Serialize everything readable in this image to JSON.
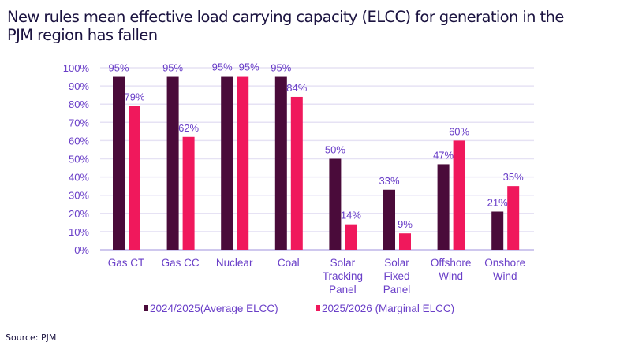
{
  "title": "New rules mean effective load carrying capacity (ELCC) for generation in the PJM region has fallen",
  "source": "Source: PJM",
  "chart_data": {
    "type": "bar",
    "categories": [
      "Gas CT",
      "Gas CC",
      "Nuclear",
      "Coal",
      "Solar Tracking Panel",
      "Solar Fixed Panel",
      "Offshore Wind",
      "Onshore Wind"
    ],
    "category_lines": [
      [
        "Gas CT"
      ],
      [
        "Gas CC"
      ],
      [
        "Nuclear"
      ],
      [
        "Coal"
      ],
      [
        "Solar",
        "Tracking",
        "Panel"
      ],
      [
        "Solar",
        "Fixed",
        "Panel"
      ],
      [
        "Offshore",
        "Wind"
      ],
      [
        "Onshore",
        "Wind"
      ]
    ],
    "series": [
      {
        "name": "2024/2025(Average ELCC)",
        "color": "#4a0b3a",
        "values": [
          95,
          95,
          95,
          95,
          50,
          33,
          47,
          21
        ]
      },
      {
        "name": "2025/2026 (Marginal ELCC)",
        "color": "#f0185c",
        "values": [
          79,
          62,
          95,
          84,
          14,
          9,
          60,
          35
        ]
      }
    ],
    "ylim": [
      0,
      100
    ],
    "yticks": [
      "0%",
      "10%",
      "20%",
      "30%",
      "40%",
      "50%",
      "60%",
      "70%",
      "80%",
      "90%",
      "100%"
    ],
    "grid": true,
    "legend_position": "bottom",
    "label_suffix": "%"
  }
}
